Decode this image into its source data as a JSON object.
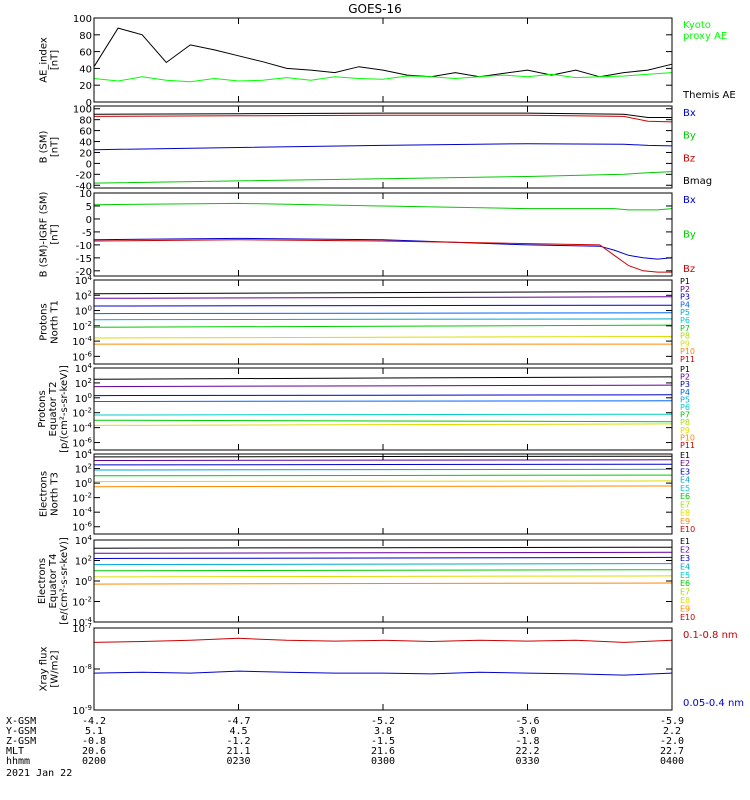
{
  "title": "GOES-16",
  "date_label": "2021 Jan 22",
  "axis_rows": [
    {
      "label": "X-GSM",
      "values": [
        "-4.2",
        "-4.7",
        "-5.2",
        "-5.6",
        "-5.9"
      ]
    },
    {
      "label": "Y-GSM",
      "values": [
        "5.1",
        "4.5",
        "3.8",
        "3.0",
        "2.2"
      ]
    },
    {
      "label": "Z-GSM",
      "values": [
        "-0.8",
        "-1.2",
        "-1.5",
        "-1.8",
        "-2.0"
      ]
    },
    {
      "label": "MLT",
      "values": [
        "20.6",
        "21.1",
        "21.6",
        "22.2",
        "22.7"
      ]
    },
    {
      "label": "hhmm",
      "values": [
        "0200",
        "0230",
        "0300",
        "0330",
        "0400"
      ]
    }
  ],
  "colors": {
    "black": "#000000",
    "green": "#00cc00",
    "bright_green": "#00ff00",
    "blue": "#0000cc",
    "red": "#cc0000"
  },
  "chart_data": [
    {
      "type": "line",
      "ylabel": [
        "AE_index",
        "[nT]"
      ],
      "ylim": [
        0,
        100
      ],
      "scale": "linear",
      "yticks": [
        0,
        20,
        40,
        60,
        80,
        100
      ],
      "x": [
        0,
        5,
        10,
        15,
        20,
        25,
        30,
        35,
        40,
        45,
        50,
        55,
        60,
        65,
        70,
        75,
        80,
        85,
        90,
        95,
        100,
        105,
        110,
        115,
        120
      ],
      "legend": [
        {
          "name": "Kyoto\nproxy AE",
          "color": "#00ff00"
        },
        {
          "name": "Themis AE",
          "color": "#000000"
        }
      ],
      "series": [
        {
          "name": "Themis AE",
          "color": "#000000",
          "values": [
            42,
            88,
            80,
            47,
            68,
            62,
            55,
            48,
            40,
            38,
            35,
            42,
            38,
            32,
            30,
            35,
            30,
            34,
            38,
            32,
            38,
            30,
            35,
            38,
            45
          ]
        },
        {
          "name": "Kyoto proxy AE",
          "color": "#00ff00",
          "values": [
            28,
            25,
            30,
            26,
            24,
            28,
            25,
            26,
            29,
            26,
            30,
            28,
            27,
            31,
            30,
            28,
            30,
            32,
            30,
            33,
            29,
            30,
            31,
            33,
            35
          ]
        }
      ]
    },
    {
      "type": "line",
      "ylabel": [
        "B (SM)",
        "[nT]"
      ],
      "ylim": [
        -45,
        105
      ],
      "scale": "linear",
      "yticks": [
        -40,
        -20,
        0,
        20,
        40,
        60,
        80,
        100
      ],
      "x": [
        0,
        30,
        60,
        90,
        110,
        115,
        120
      ],
      "legend": [
        {
          "name": "Bx",
          "color": "#0000cc"
        },
        {
          "name": "By",
          "color": "#00cc00"
        },
        {
          "name": "Bz",
          "color": "#cc0000"
        },
        {
          "name": "Bmag",
          "color": "#000000"
        }
      ],
      "series": [
        {
          "name": "Bmag",
          "color": "#000000",
          "values": [
            90,
            91,
            92,
            92,
            90,
            84,
            84
          ]
        },
        {
          "name": "Bz",
          "color": "#cc0000",
          "values": [
            86,
            87,
            88,
            88,
            86,
            77,
            76
          ]
        },
        {
          "name": "Bx",
          "color": "#0000cc",
          "values": [
            25,
            29,
            33,
            36,
            35,
            33,
            32
          ]
        },
        {
          "name": "By",
          "color": "#00cc00",
          "values": [
            -36,
            -32,
            -28,
            -24,
            -20,
            -17,
            -15
          ]
        }
      ]
    },
    {
      "type": "line",
      "ylabel": [
        "B (SM)-IGRF (SM)",
        "[nT]"
      ],
      "ylim": [
        -22,
        10
      ],
      "scale": "linear",
      "yticks": [
        -20,
        -15,
        -10,
        -5,
        0,
        5,
        10
      ],
      "x": [
        0,
        30,
        60,
        90,
        105,
        108,
        111,
        114,
        117,
        120
      ],
      "legend": [
        {
          "name": "Bx",
          "color": "#0000cc"
        },
        {
          "name": "By",
          "color": "#00cc00"
        },
        {
          "name": "Bz",
          "color": "#cc0000"
        }
      ],
      "series": [
        {
          "name": "By",
          "color": "#00cc00",
          "values": [
            5.5,
            6,
            5,
            4,
            4,
            4,
            3.5,
            3.5,
            3.5,
            4
          ]
        },
        {
          "name": "Bx",
          "color": "#0000cc",
          "values": [
            -8,
            -7.5,
            -8,
            -10,
            -10.5,
            -12,
            -14,
            -15,
            -15.5,
            -15
          ]
        },
        {
          "name": "Bz",
          "color": "#cc0000",
          "values": [
            -8.5,
            -8,
            -8.5,
            -9.5,
            -10,
            -14,
            -18,
            -20,
            -20.5,
            -20.5
          ]
        }
      ]
    },
    {
      "type": "line",
      "ylabel": [
        "Protons",
        "North T1"
      ],
      "ylim": [
        -7,
        4
      ],
      "scale": "log",
      "yticks": [
        -6,
        -4,
        -2,
        0,
        2,
        4
      ],
      "x": [
        0,
        120
      ],
      "legend": [
        {
          "name": "P1",
          "color": "#000000"
        },
        {
          "name": "P2",
          "color": "#660099"
        },
        {
          "name": "P3",
          "color": "#0000cc"
        },
        {
          "name": "P4",
          "color": "#0066ff"
        },
        {
          "name": "P5",
          "color": "#00aacc"
        },
        {
          "name": "P6",
          "color": "#00cccc"
        },
        {
          "name": "P7",
          "color": "#00cc00"
        },
        {
          "name": "P8",
          "color": "#aadd00"
        },
        {
          "name": "P9",
          "color": "#dddd00"
        },
        {
          "name": "P10",
          "color": "#ff8800"
        },
        {
          "name": "P11",
          "color": "#cc0000"
        }
      ],
      "series": [
        {
          "name": "P1",
          "color": "#000000",
          "values": [
            2.2,
            2.5
          ]
        },
        {
          "name": "P2",
          "color": "#660099",
          "values": [
            1.6,
            1.8
          ]
        },
        {
          "name": "P3",
          "color": "#0000cc",
          "values": [
            0.6,
            0.7
          ]
        },
        {
          "name": "P4",
          "color": "#0066ff",
          "values": [
            -0.4,
            -0.3
          ]
        },
        {
          "name": "P5",
          "color": "#00aacc",
          "values": [
            -1.2,
            -1.1
          ]
        },
        {
          "name": "P6",
          "color": "#00cc00",
          "values": [
            -2.2,
            -1.9
          ]
        },
        {
          "name": "P7",
          "color": "#dddd00",
          "values": [
            -3.6,
            -3.4
          ]
        },
        {
          "name": "P8",
          "color": "#ff8800",
          "values": [
            -4.4,
            -4.4
          ]
        }
      ]
    },
    {
      "type": "line",
      "ylabel": [
        "Protons",
        "Equator T2",
        "[p/(cm²-s-sr-keV)]"
      ],
      "ylim": [
        -7,
        4
      ],
      "scale": "log",
      "yticks": [
        -6,
        -4,
        -2,
        0,
        2,
        4
      ],
      "x": [
        0,
        120
      ],
      "legend": [
        {
          "name": "P1",
          "color": "#000000"
        },
        {
          "name": "P2",
          "color": "#660099"
        },
        {
          "name": "P3",
          "color": "#0000cc"
        },
        {
          "name": "P4",
          "color": "#0066ff"
        },
        {
          "name": "P5",
          "color": "#00aacc"
        },
        {
          "name": "P6",
          "color": "#00cccc"
        },
        {
          "name": "P7",
          "color": "#00cc00"
        },
        {
          "name": "P8",
          "color": "#aadd00"
        },
        {
          "name": "P9",
          "color": "#dddd00"
        },
        {
          "name": "P10",
          "color": "#ff8800"
        },
        {
          "name": "P11",
          "color": "#cc0000"
        }
      ],
      "series": [
        {
          "name": "P1",
          "color": "#000000",
          "values": [
            2.5,
            2.8
          ]
        },
        {
          "name": "P2",
          "color": "#660099",
          "values": [
            1.5,
            1.7
          ]
        },
        {
          "name": "P3",
          "color": "#0000cc",
          "values": [
            0.3,
            0.4
          ]
        },
        {
          "name": "P4",
          "color": "#0066ff",
          "values": [
            -0.5,
            -0.4
          ]
        },
        {
          "name": "P5",
          "color": "#00cccc",
          "values": [
            -2.3,
            -2.2
          ]
        },
        {
          "name": "P6",
          "color": "#00cc00",
          "values": [
            -3.0,
            -3.2
          ]
        },
        {
          "name": "P7",
          "color": "#dddd00",
          "values": [
            -3.7,
            -3.5
          ]
        }
      ]
    },
    {
      "type": "line",
      "ylabel": [
        "Electrons",
        "North T3"
      ],
      "ylim": [
        -7,
        4
      ],
      "scale": "log",
      "yticks": [
        -6,
        -4,
        -2,
        0,
        2,
        4
      ],
      "x": [
        0,
        120
      ],
      "legend": [
        {
          "name": "E1",
          "color": "#000000"
        },
        {
          "name": "E2",
          "color": "#660099"
        },
        {
          "name": "E3",
          "color": "#0000cc"
        },
        {
          "name": "E4",
          "color": "#00aacc"
        },
        {
          "name": "E5",
          "color": "#00cccc"
        },
        {
          "name": "E6",
          "color": "#00cc00"
        },
        {
          "name": "E7",
          "color": "#aadd00"
        },
        {
          "name": "E8",
          "color": "#dddd00"
        },
        {
          "name": "E9",
          "color": "#ff8800"
        },
        {
          "name": "E10",
          "color": "#cc0000"
        }
      ],
      "series": [
        {
          "name": "E1",
          "color": "#000000",
          "values": [
            3.6,
            3.7
          ]
        },
        {
          "name": "E2",
          "color": "#660099",
          "values": [
            3.1,
            3.2
          ]
        },
        {
          "name": "E3",
          "color": "#0000cc",
          "values": [
            2.5,
            2.6
          ]
        },
        {
          "name": "E4",
          "color": "#00aacc",
          "values": [
            1.8,
            1.9
          ]
        },
        {
          "name": "E5",
          "color": "#00cc00",
          "values": [
            1.0,
            1.1
          ]
        },
        {
          "name": "E6",
          "color": "#dddd00",
          "values": [
            0.2,
            0.3
          ]
        },
        {
          "name": "E7",
          "color": "#ff8800",
          "values": [
            -0.5,
            -0.4
          ]
        }
      ]
    },
    {
      "type": "line",
      "ylabel": [
        "Electrons",
        "Equator T4",
        "[e/(cm²-s-sr-keV)]"
      ],
      "ylim": [
        -4,
        4
      ],
      "scale": "log",
      "yticks": [
        -4,
        -2,
        0,
        2,
        4
      ],
      "x": [
        0,
        120
      ],
      "legend": [
        {
          "name": "E1",
          "color": "#000000"
        },
        {
          "name": "E2",
          "color": "#660099"
        },
        {
          "name": "E3",
          "color": "#0000cc"
        },
        {
          "name": "E4",
          "color": "#00aacc"
        },
        {
          "name": "E5",
          "color": "#00cccc"
        },
        {
          "name": "E6",
          "color": "#00cc00"
        },
        {
          "name": "E7",
          "color": "#aadd00"
        },
        {
          "name": "E8",
          "color": "#dddd00"
        },
        {
          "name": "E9",
          "color": "#ff8800"
        },
        {
          "name": "E10",
          "color": "#cc0000"
        }
      ],
      "series": [
        {
          "name": "E1",
          "color": "#000000",
          "values": [
            3.2,
            3.3
          ]
        },
        {
          "name": "E2",
          "color": "#660099",
          "values": [
            2.7,
            2.8
          ]
        },
        {
          "name": "E3",
          "color": "#0000cc",
          "values": [
            2.2,
            2.3
          ]
        },
        {
          "name": "E4",
          "color": "#00aacc",
          "values": [
            1.6,
            1.7
          ]
        },
        {
          "name": "E5",
          "color": "#00cc00",
          "values": [
            1.0,
            1.1
          ]
        },
        {
          "name": "E6",
          "color": "#dddd00",
          "values": [
            0.4,
            0.5
          ]
        },
        {
          "name": "E7",
          "color": "#ff8800",
          "values": [
            -0.3,
            -0.2
          ]
        }
      ]
    },
    {
      "type": "line",
      "ylabel": [
        "Xray flux",
        "[W/m2]"
      ],
      "ylim": [
        -9,
        -7
      ],
      "scale": "log",
      "yticks": [
        -9,
        -8,
        -7
      ],
      "x": [
        0,
        10,
        20,
        30,
        40,
        50,
        60,
        70,
        80,
        90,
        100,
        110,
        120
      ],
      "legend": [
        {
          "name": "0.1-0.8 nm",
          "color": "#cc0000"
        },
        {
          "name": "0.05-0.4 nm",
          "color": "#0000cc"
        }
      ],
      "series": [
        {
          "name": "0.1-0.8 nm",
          "color": "#cc0000",
          "values": [
            -7.35,
            -7.33,
            -7.3,
            -7.25,
            -7.3,
            -7.32,
            -7.3,
            -7.33,
            -7.3,
            -7.32,
            -7.3,
            -7.35,
            -7.3
          ]
        },
        {
          "name": "0.05-0.4 nm",
          "color": "#0000cc",
          "values": [
            -8.1,
            -8.08,
            -8.1,
            -8.05,
            -8.08,
            -8.1,
            -8.1,
            -8.12,
            -8.08,
            -8.1,
            -8.12,
            -8.15,
            -8.1
          ]
        }
      ]
    }
  ]
}
